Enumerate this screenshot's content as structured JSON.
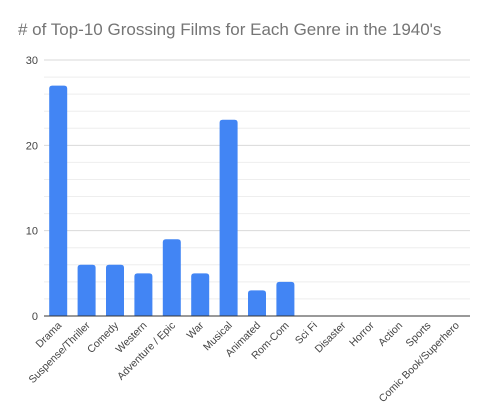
{
  "chart_data": {
    "type": "bar",
    "title": "# of Top-10 Grossing Films for Each Genre in the 1940's",
    "xlabel": "",
    "ylabel": "",
    "categories": [
      "Drama",
      "Suspense/Thriller",
      "Comedy",
      "Western",
      "Adventure / Epic",
      "War",
      "Musical",
      "Animated",
      "Rom-Com",
      "Sci Fi",
      "Disaster",
      "Horror",
      "Action",
      "Sports",
      "Comic Book/Superhero"
    ],
    "values": [
      27,
      6,
      6,
      5,
      9,
      5,
      23,
      3,
      4,
      0,
      0,
      0,
      0,
      0,
      0
    ],
    "ylim": [
      0,
      30
    ],
    "yticks": [
      0,
      10,
      20,
      30
    ],
    "grid": true,
    "legend": "none",
    "colors": {
      "bar": "#4285f4",
      "grid": "#e6e6e6",
      "axis": "#333333",
      "title": "#757575"
    }
  }
}
